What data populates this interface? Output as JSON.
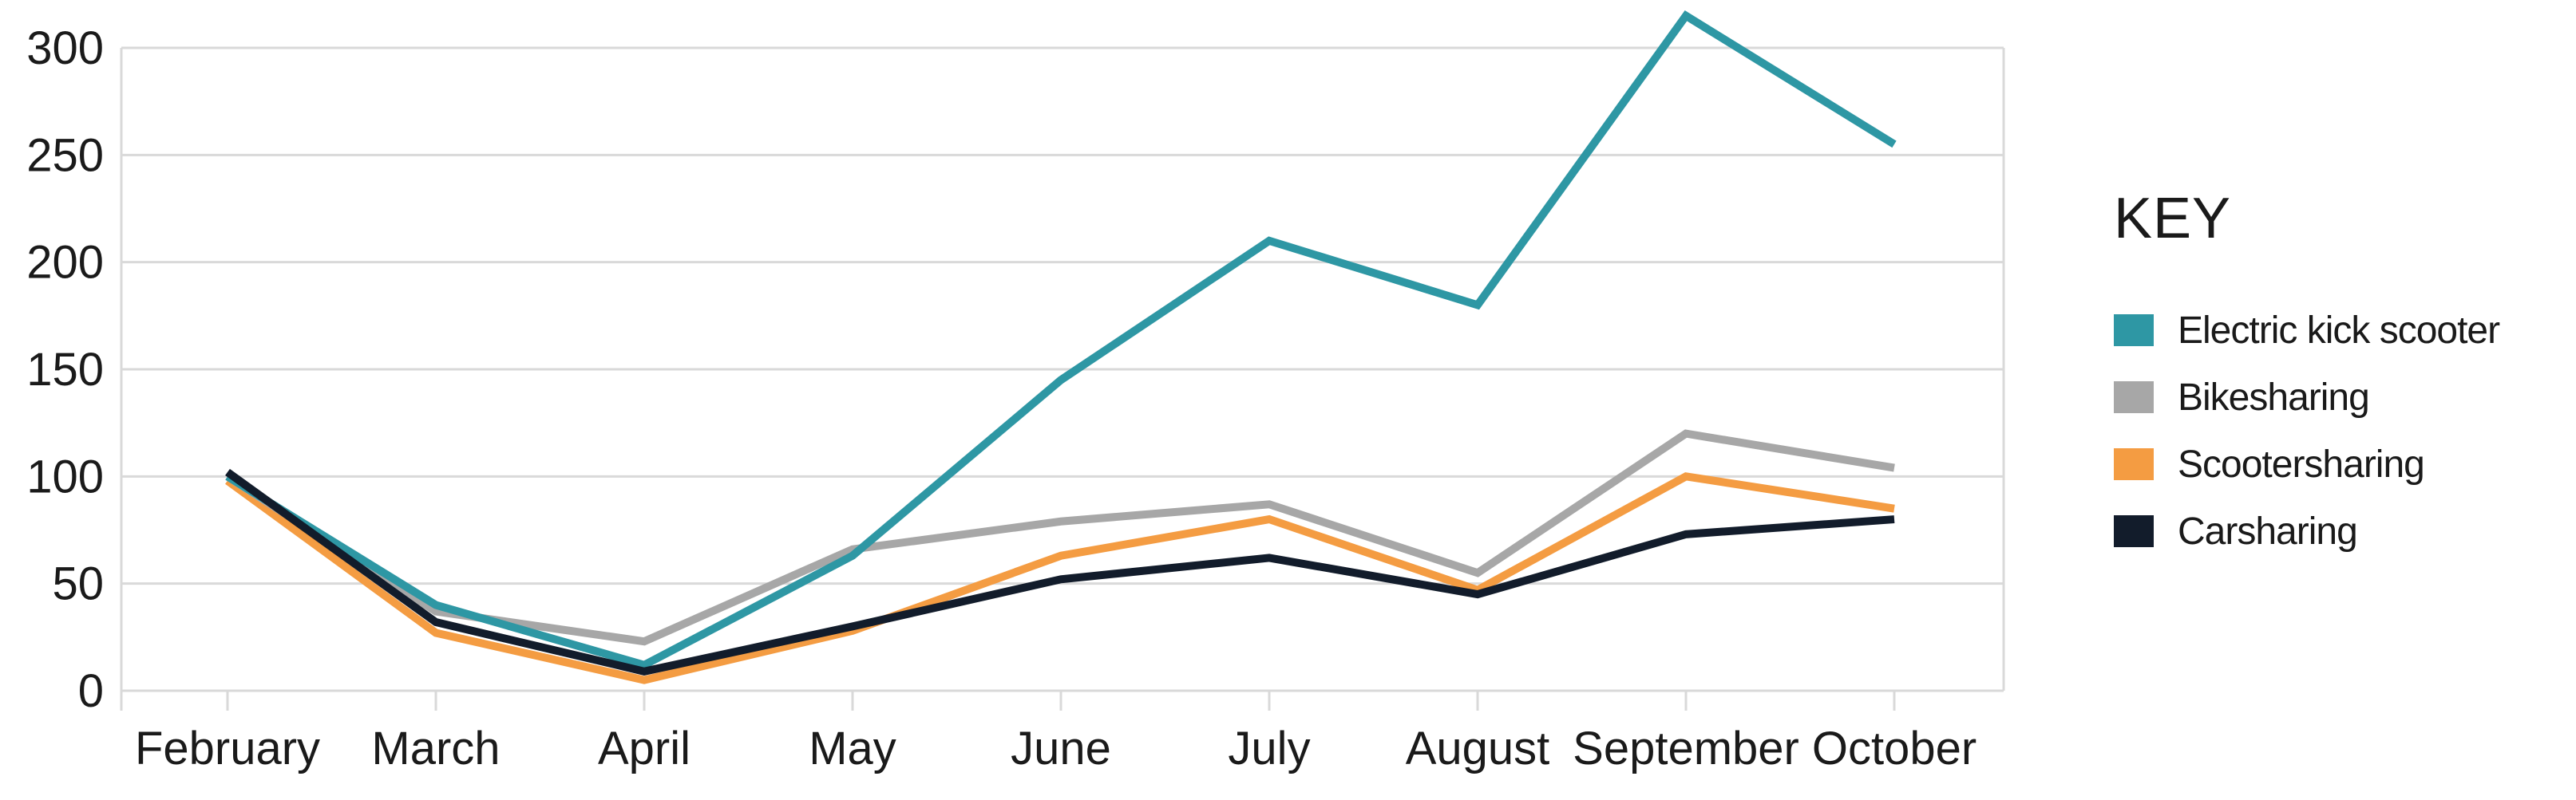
{
  "chart_data": {
    "type": "line",
    "title": "",
    "categories": [
      "February",
      "March",
      "April",
      "May",
      "June",
      "July",
      "August",
      "September",
      "October"
    ],
    "series": [
      {
        "name": "Electric kick scooter",
        "color": "#2E97A4",
        "values": [
          100,
          40,
          12,
          63,
          145,
          210,
          180,
          315,
          255
        ]
      },
      {
        "name": "Bikesharing",
        "color": "#A7A7A7",
        "values": [
          100,
          37,
          23,
          66,
          79,
          87,
          55,
          120,
          104
        ]
      },
      {
        "name": "Scootersharing",
        "color": "#F49C42",
        "values": [
          98,
          27,
          5,
          28,
          63,
          80,
          47,
          100,
          85
        ]
      },
      {
        "name": "Carsharing",
        "color": "#121C2B",
        "values": [
          102,
          32,
          9,
          30,
          52,
          62,
          45,
          73,
          80
        ]
      }
    ],
    "xlabel": "",
    "ylabel": "",
    "ylim": [
      0,
      300
    ],
    "yticks": [
      0,
      50,
      100,
      150,
      200,
      250,
      300
    ],
    "grid": "horizontal",
    "gridline_color": "#D9D9D9",
    "text_color": "#1a1a1a",
    "legend_position": "right"
  },
  "legend": {
    "title": "KEY"
  }
}
